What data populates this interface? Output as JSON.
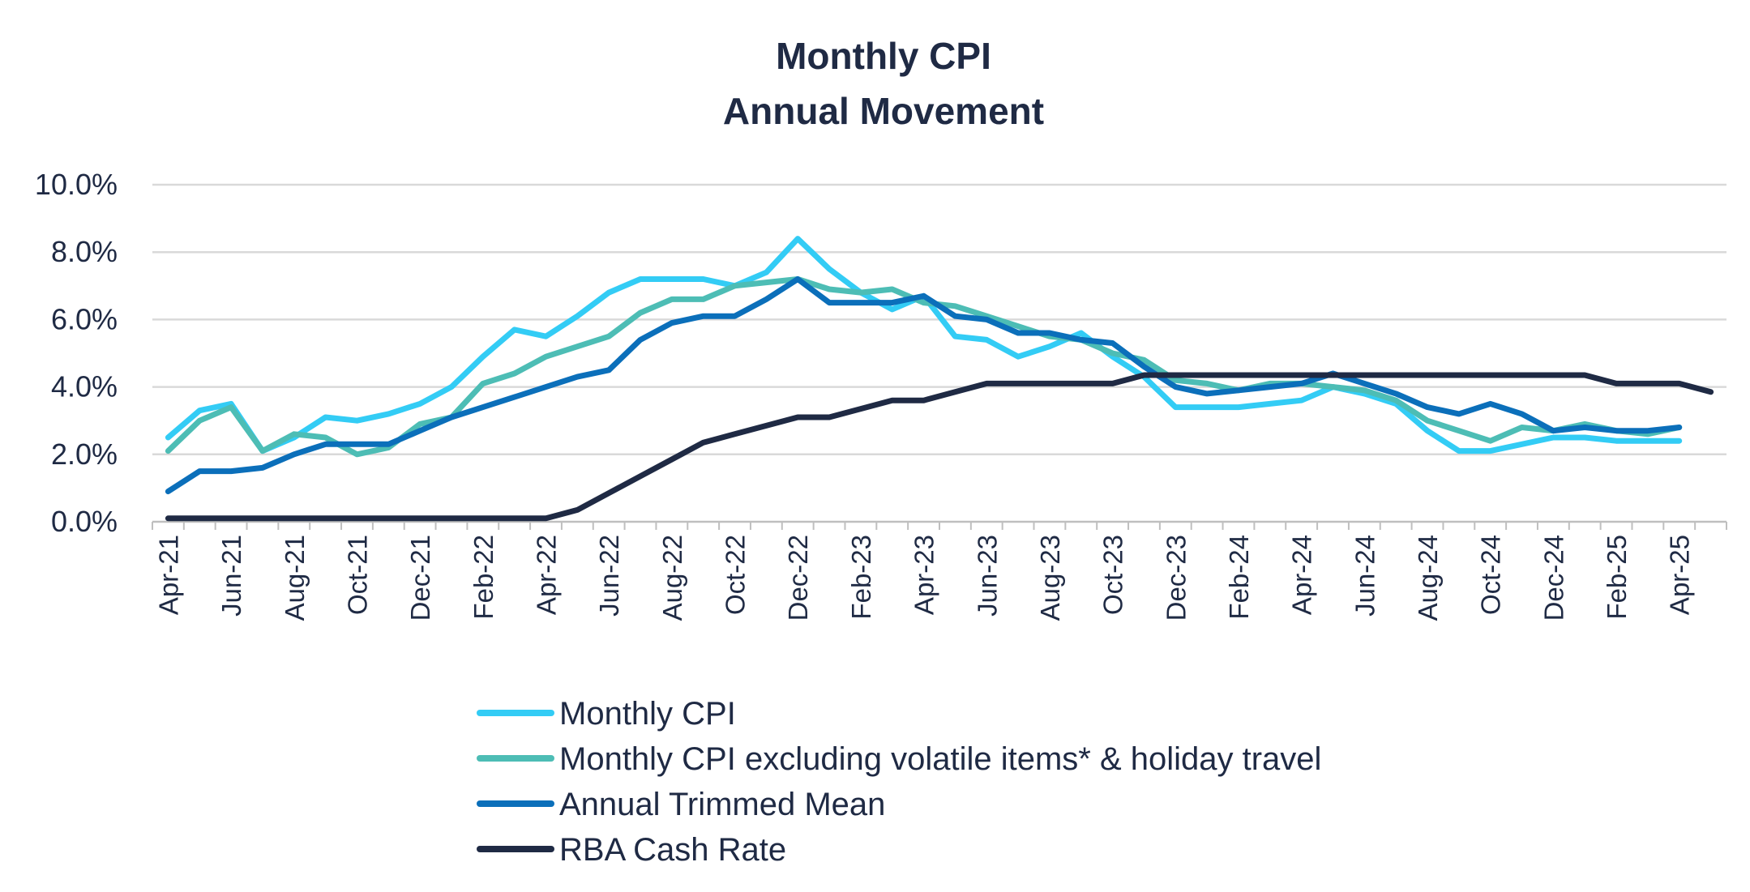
{
  "chart_data": {
    "type": "line",
    "title": [
      "Monthly CPI",
      "Annual Movement"
    ],
    "ylim": [
      0,
      10
    ],
    "y_ticks": [
      "0.0%",
      "2.0%",
      "4.0%",
      "6.0%",
      "8.0%",
      "10.0%"
    ],
    "y_tick_values": [
      0,
      2,
      4,
      6,
      8,
      10
    ],
    "grid": "horizontal",
    "legend_position": "bottom",
    "x": [
      "Apr-21",
      "May-21",
      "Jun-21",
      "Jul-21",
      "Aug-21",
      "Sep-21",
      "Oct-21",
      "Nov-21",
      "Dec-21",
      "Jan-22",
      "Feb-22",
      "Mar-22",
      "Apr-22",
      "May-22",
      "Jun-22",
      "Jul-22",
      "Aug-22",
      "Sep-22",
      "Oct-22",
      "Nov-22",
      "Dec-22",
      "Jan-23",
      "Feb-23",
      "Mar-23",
      "Apr-23",
      "May-23",
      "Jun-23",
      "Jul-23",
      "Aug-23",
      "Sep-23",
      "Oct-23",
      "Nov-23",
      "Dec-23",
      "Jan-24",
      "Feb-24",
      "Mar-24",
      "Apr-24",
      "May-24",
      "Jun-24",
      "Jul-24",
      "Aug-24",
      "Sep-24",
      "Oct-24",
      "Nov-24",
      "Dec-24",
      "Jan-25",
      "Feb-25",
      "Mar-25",
      "Apr-25",
      "May-25"
    ],
    "x_tick_labels": [
      "Apr-21",
      "Jun-21",
      "Aug-21",
      "Oct-21",
      "Dec-21",
      "Feb-22",
      "Apr-22",
      "Jun-22",
      "Aug-22",
      "Oct-22",
      "Dec-22",
      "Feb-23",
      "Apr-23",
      "Jun-23",
      "Aug-23",
      "Oct-23",
      "Dec-23",
      "Feb-24",
      "Apr-24",
      "Jun-24",
      "Aug-24",
      "Oct-24",
      "Dec-24",
      "Feb-25",
      "Apr-25"
    ],
    "series": [
      {
        "name": "Monthly CPI",
        "color": "#33ccf5",
        "values": [
          2.5,
          3.3,
          3.5,
          2.1,
          2.5,
          3.1,
          3.0,
          3.2,
          3.5,
          4.0,
          4.9,
          5.7,
          5.5,
          6.1,
          6.8,
          7.2,
          7.2,
          7.2,
          7.0,
          7.4,
          8.4,
          7.5,
          6.8,
          6.3,
          6.7,
          5.5,
          5.4,
          4.9,
          5.2,
          5.6,
          4.9,
          4.3,
          3.4,
          3.4,
          3.4,
          3.5,
          3.6,
          4.0,
          3.8,
          3.5,
          2.7,
          2.1,
          2.1,
          2.3,
          2.5,
          2.5,
          2.4,
          2.4,
          2.4,
          null
        ]
      },
      {
        "name": "Monthly CPI excluding volatile items* & holiday travel",
        "color": "#4dbdb5",
        "values": [
          2.1,
          3.0,
          3.4,
          2.1,
          2.6,
          2.5,
          2.0,
          2.2,
          2.9,
          3.1,
          4.1,
          4.4,
          4.9,
          5.2,
          5.5,
          6.2,
          6.6,
          6.6,
          7.0,
          7.1,
          7.2,
          6.9,
          6.8,
          6.9,
          6.5,
          6.4,
          6.1,
          5.8,
          5.5,
          5.4,
          5.0,
          4.8,
          4.2,
          4.1,
          3.9,
          4.1,
          4.1,
          4.0,
          3.9,
          3.6,
          3.0,
          2.7,
          2.4,
          2.8,
          2.7,
          2.9,
          2.7,
          2.6,
          2.8,
          null
        ]
      },
      {
        "name": "Annual Trimmed Mean",
        "color": "#0b6fba",
        "values": [
          0.9,
          1.5,
          1.5,
          1.6,
          2.0,
          2.3,
          2.3,
          2.3,
          2.7,
          3.1,
          3.4,
          3.7,
          4.0,
          4.3,
          4.5,
          5.4,
          5.9,
          6.1,
          6.1,
          6.6,
          7.2,
          6.5,
          6.5,
          6.5,
          6.7,
          6.1,
          6.0,
          5.6,
          5.6,
          5.4,
          5.3,
          4.6,
          4.0,
          3.8,
          3.9,
          4.0,
          4.1,
          4.4,
          4.1,
          3.8,
          3.4,
          3.2,
          3.5,
          3.2,
          2.7,
          2.8,
          2.7,
          2.7,
          2.8,
          null
        ]
      },
      {
        "name": "RBA Cash Rate",
        "color": "#1f2a44",
        "values": [
          0.1,
          0.1,
          0.1,
          0.1,
          0.1,
          0.1,
          0.1,
          0.1,
          0.1,
          0.1,
          0.1,
          0.1,
          0.1,
          0.35,
          0.85,
          1.35,
          1.85,
          2.35,
          2.6,
          2.85,
          3.1,
          3.1,
          3.35,
          3.6,
          3.6,
          3.85,
          4.1,
          4.1,
          4.1,
          4.1,
          4.1,
          4.35,
          4.35,
          4.35,
          4.35,
          4.35,
          4.35,
          4.35,
          4.35,
          4.35,
          4.35,
          4.35,
          4.35,
          4.35,
          4.35,
          4.35,
          4.1,
          4.1,
          4.1,
          3.85
        ]
      }
    ]
  }
}
